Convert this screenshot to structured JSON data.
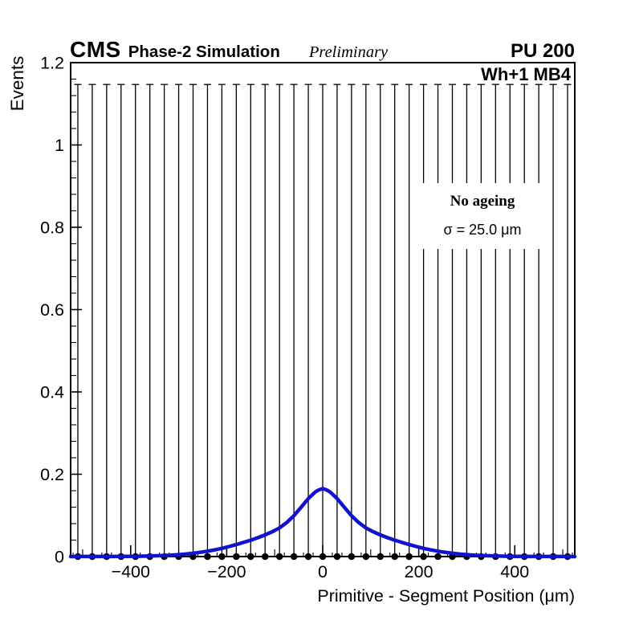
{
  "header": {
    "experiment": "CMS",
    "label": "Phase-2 Simulation",
    "sublabel": "Preliminary",
    "pileup": "PU 200"
  },
  "plot": {
    "frame_label": "Wh+1 MB4",
    "legend": {
      "title": "No ageing",
      "resolution": "σ = 25.0 μm"
    }
  },
  "chart_data": {
    "type": "line",
    "title": "",
    "xlabel": "Primitive - Segment Position (μm)",
    "ylabel": "Events",
    "xlim": [
      -525,
      525
    ],
    "ylim": [
      0,
      1.2
    ],
    "grid": false,
    "x_ticks": {
      "values": [
        -400,
        -200,
        0,
        200,
        400
      ],
      "labels": [
        "−400",
        "−200",
        "0",
        "200",
        "400"
      ],
      "minor_step": 20
    },
    "y_ticks": {
      "values": [
        0,
        0.2,
        0.4,
        0.6,
        0.8,
        1,
        1.2
      ],
      "labels": [
        "0",
        "0.2",
        "0.4",
        "0.6",
        "0.8",
        "1",
        "1.2"
      ],
      "minor_step": 0.04
    },
    "histogram": {
      "marker": "filled-circle",
      "color": "#000000",
      "bin_width": 30,
      "error_high": 1.147,
      "bin_centers": [
        -510,
        -480,
        -450,
        -420,
        -390,
        -360,
        -330,
        -300,
        -270,
        -240,
        -210,
        -180,
        -150,
        -120,
        -90,
        -60,
        -30,
        0,
        30,
        60,
        90,
        120,
        150,
        180,
        210,
        240,
        270,
        300,
        330,
        360,
        390,
        420,
        450,
        480,
        510
      ],
      "bin_values": [
        0,
        0,
        0,
        0,
        0,
        0,
        0,
        0,
        0,
        0,
        0,
        0,
        0,
        0,
        0,
        0,
        0,
        0,
        0,
        0,
        0,
        0,
        0,
        0,
        0,
        0,
        0,
        0,
        0,
        0,
        0,
        0,
        0,
        0,
        0
      ]
    },
    "fit_curve": {
      "color": "#1111d0",
      "peak": 0.165,
      "points": [
        [
          -525,
          0
        ],
        [
          -510,
          0.0001
        ],
        [
          -495,
          0.0001
        ],
        [
          -480,
          0.0001
        ],
        [
          -465,
          0.0001
        ],
        [
          -450,
          0.0002
        ],
        [
          -435,
          0.0002
        ],
        [
          -420,
          0.0003
        ],
        [
          -405,
          0.0004
        ],
        [
          -390,
          0.0006
        ],
        [
          -375,
          0.0009
        ],
        [
          -360,
          0.0013
        ],
        [
          -345,
          0.0019
        ],
        [
          -330,
          0.0026
        ],
        [
          -315,
          0.0036
        ],
        [
          -300,
          0.0047
        ],
        [
          -285,
          0.0061
        ],
        [
          -270,
          0.008
        ],
        [
          -255,
          0.0103
        ],
        [
          -240,
          0.013
        ],
        [
          -225,
          0.0162
        ],
        [
          -210,
          0.02
        ],
        [
          -195,
          0.0243
        ],
        [
          -180,
          0.0291
        ],
        [
          -165,
          0.0343
        ],
        [
          -150,
          0.0399
        ],
        [
          -135,
          0.0458
        ],
        [
          -120,
          0.0527
        ],
        [
          -105,
          0.0602
        ],
        [
          -90,
          0.0697
        ],
        [
          -75,
          0.0825
        ],
        [
          -60,
          0.0994
        ],
        [
          -45,
          0.1199
        ],
        [
          -30,
          0.1408
        ],
        [
          -15,
          0.1572
        ],
        [
          -8,
          0.162
        ],
        [
          0,
          0.165
        ],
        [
          8,
          0.162
        ],
        [
          15,
          0.1572
        ],
        [
          30,
          0.1408
        ],
        [
          45,
          0.1199
        ],
        [
          60,
          0.0994
        ],
        [
          75,
          0.0825
        ],
        [
          90,
          0.0697
        ],
        [
          105,
          0.0602
        ],
        [
          120,
          0.0527
        ],
        [
          135,
          0.0458
        ],
        [
          150,
          0.0399
        ],
        [
          165,
          0.0343
        ],
        [
          180,
          0.0291
        ],
        [
          195,
          0.0243
        ],
        [
          210,
          0.02
        ],
        [
          225,
          0.0162
        ],
        [
          240,
          0.013
        ],
        [
          255,
          0.0103
        ],
        [
          270,
          0.008
        ],
        [
          285,
          0.0061
        ],
        [
          300,
          0.0047
        ],
        [
          315,
          0.0036
        ],
        [
          330,
          0.0026
        ],
        [
          345,
          0.0019
        ],
        [
          360,
          0.0013
        ],
        [
          375,
          0.0009
        ],
        [
          390,
          0.0006
        ],
        [
          405,
          0.0004
        ],
        [
          420,
          0.0003
        ],
        [
          435,
          0.0002
        ],
        [
          450,
          0.0002
        ],
        [
          465,
          0.0001
        ],
        [
          480,
          0.0001
        ],
        [
          495,
          0.0001
        ],
        [
          510,
          0.0001
        ],
        [
          525,
          0
        ]
      ]
    }
  }
}
